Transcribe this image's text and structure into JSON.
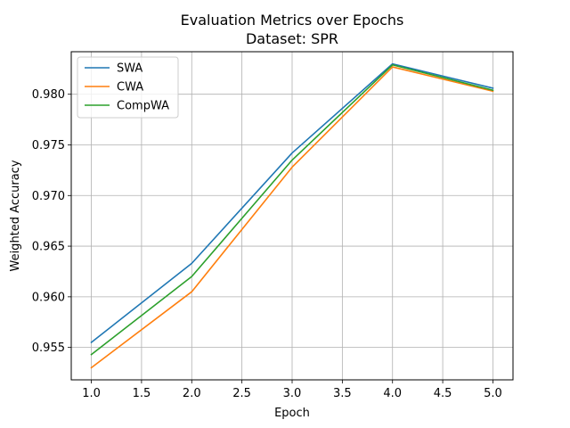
{
  "chart_data": {
    "type": "line",
    "title": "Evaluation Metrics over Epochs",
    "subtitle": "Dataset: SPR",
    "xlabel": "Epoch",
    "ylabel": "Weighted Accuracy",
    "x": [
      1.0,
      2.0,
      3.0,
      4.0,
      5.0
    ],
    "xlim": [
      0.8,
      5.2
    ],
    "ylim": [
      0.9518,
      0.9842
    ],
    "xticks": [
      1.0,
      1.5,
      2.0,
      2.5,
      3.0,
      3.5,
      4.0,
      4.5,
      5.0
    ],
    "xtick_labels": [
      "1.0",
      "1.5",
      "2.0",
      "2.5",
      "3.0",
      "3.5",
      "4.0",
      "4.5",
      "5.0"
    ],
    "yticks": [
      0.955,
      0.96,
      0.965,
      0.97,
      0.975,
      0.98
    ],
    "ytick_labels": [
      "0.955",
      "0.960",
      "0.965",
      "0.970",
      "0.975",
      "0.980"
    ],
    "grid": true,
    "legend_position": "top-left",
    "series": [
      {
        "name": "SWA",
        "color": "#1f77b4",
        "values": [
          0.9555,
          0.9633,
          0.9742,
          0.983,
          0.9806
        ]
      },
      {
        "name": "CWA",
        "color": "#ff7f0e",
        "values": [
          0.953,
          0.9605,
          0.9728,
          0.9827,
          0.9803
        ]
      },
      {
        "name": "CompWA",
        "color": "#2ca02c",
        "values": [
          0.9543,
          0.962,
          0.9735,
          0.9829,
          0.9804
        ]
      }
    ]
  }
}
